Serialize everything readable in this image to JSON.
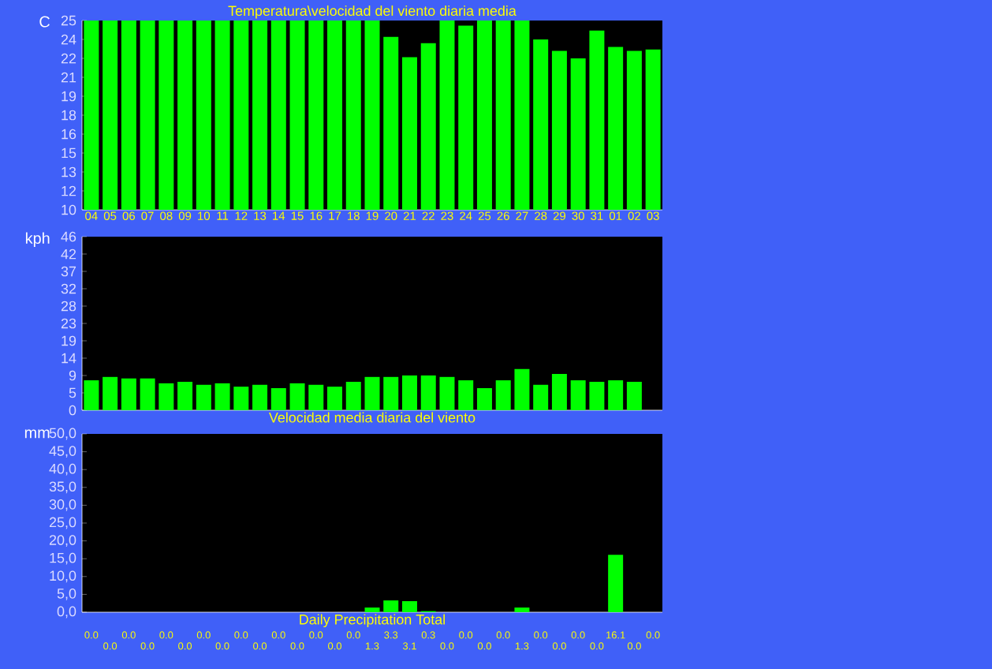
{
  "chart_data": [
    {
      "type": "bar",
      "title": "Temperatura\\velocidad del viento diaria media",
      "ylabel": "C",
      "categories": [
        "04",
        "05",
        "06",
        "07",
        "08",
        "09",
        "10",
        "11",
        "12",
        "13",
        "14",
        "15",
        "16",
        "17",
        "18",
        "19",
        "20",
        "21",
        "22",
        "23",
        "24",
        "25",
        "26",
        "27",
        "28",
        "29",
        "30",
        "31",
        "01",
        "02",
        "03"
      ],
      "values": [
        25,
        25,
        25,
        25,
        25,
        25,
        25,
        25,
        25,
        25,
        25,
        25,
        25,
        25,
        25,
        25,
        23.7,
        22.1,
        23.2,
        25,
        24.6,
        25,
        25,
        25,
        23.5,
        22.6,
        22.0,
        24.2,
        22.9,
        22.6,
        22.7
      ],
      "color": "#00ff00",
      "ylim": [
        10,
        25
      ],
      "yticks": [
        {
          "value": 10,
          "label": "10"
        },
        {
          "value": 11.5,
          "label": "12"
        },
        {
          "value": 13,
          "label": "13"
        },
        {
          "value": 14.5,
          "label": "15"
        },
        {
          "value": 16,
          "label": "16"
        },
        {
          "value": 17.5,
          "label": "18"
        },
        {
          "value": 19,
          "label": "19"
        },
        {
          "value": 20.5,
          "label": "21"
        },
        {
          "value": 22,
          "label": "22"
        },
        {
          "value": 23.5,
          "label": "24"
        },
        {
          "value": 25,
          "label": "25"
        }
      ]
    },
    {
      "type": "bar",
      "ylabel": "kph",
      "xlabel": "Velocidad media diaria del viento",
      "tick_labels": "y",
      "categories": [
        "04",
        "05",
        "06",
        "07",
        "08",
        "09",
        "10",
        "11",
        "12",
        "13",
        "14",
        "15",
        "16",
        "17",
        "18",
        "19",
        "20",
        "21",
        "22",
        "23",
        "24",
        "25",
        "26",
        "27",
        "28",
        "29",
        "30",
        "31",
        "01",
        "02",
        "03"
      ],
      "values": [
        8.0,
        8.9,
        8.5,
        8.5,
        7.2,
        7.6,
        6.8,
        7.2,
        6.3,
        6.8,
        5.9,
        7.2,
        6.8,
        6.3,
        7.6,
        8.9,
        8.9,
        9.3,
        9.3,
        8.9,
        8.0,
        5.9,
        8.0,
        11.0,
        6.8,
        9.7,
        8.0,
        7.6,
        8.0,
        7.6,
        null
      ],
      "color": "#00ff00",
      "ylim": [
        0,
        46.4
      ],
      "yticks": [
        {
          "value": 0,
          "label": "0"
        },
        {
          "value": 4.64,
          "label": "5"
        },
        {
          "value": 9.28,
          "label": "9"
        },
        {
          "value": 13.92,
          "label": "14"
        },
        {
          "value": 18.56,
          "label": "19"
        },
        {
          "value": 23.2,
          "label": "23"
        },
        {
          "value": 27.84,
          "label": "28"
        },
        {
          "value": 32.48,
          "label": "32"
        },
        {
          "value": 37.12,
          "label": "37"
        },
        {
          "value": 41.76,
          "label": "42"
        },
        {
          "value": 46.4,
          "label": "46"
        }
      ]
    },
    {
      "type": "bar",
      "ylabel": "mm",
      "xlabel": "Daily Precipitation Total",
      "tick_labels": "y",
      "categories": [
        "04",
        "05",
        "06",
        "07",
        "08",
        "09",
        "10",
        "11",
        "12",
        "13",
        "14",
        "15",
        "16",
        "17",
        "18",
        "19",
        "20",
        "21",
        "22",
        "23",
        "24",
        "25",
        "26",
        "27",
        "28",
        "29",
        "30",
        "31",
        "01",
        "02",
        "03"
      ],
      "values": [
        0.0,
        0.0,
        0.0,
        0.0,
        0.0,
        0.0,
        0.0,
        0.0,
        0.0,
        0.0,
        0.0,
        0.0,
        0.0,
        0.0,
        0.0,
        1.3,
        3.3,
        3.1,
        0.3,
        0.0,
        0.0,
        0.0,
        0.0,
        1.3,
        0.0,
        0.0,
        0.0,
        0.0,
        16.1,
        0.0,
        0.0
      ],
      "value_labels": [
        "0.0",
        "0.0",
        "0.0",
        "0.0",
        "0.0",
        "0.0",
        "0.0",
        "0.0",
        "0.0",
        "0.0",
        "0.0",
        "0.0",
        "0.0",
        "0.0",
        "0.0",
        "1.3",
        "3.3",
        "3.1",
        "0.3",
        "0.0",
        "0.0",
        "0.0",
        "0.0",
        "1.3",
        "0.0",
        "0.0",
        "0.0",
        "0.0",
        "16.1",
        "0.0",
        "0.0"
      ],
      "color": "#00ff00",
      "ylim": [
        0,
        50
      ],
      "yticks": [
        {
          "value": 0,
          "label": "0,0"
        },
        {
          "value": 5,
          "label": "5,0"
        },
        {
          "value": 10,
          "label": "10,0"
        },
        {
          "value": 15,
          "label": "15,0"
        },
        {
          "value": 20,
          "label": "20,0"
        },
        {
          "value": 25,
          "label": "25,0"
        },
        {
          "value": 30,
          "label": "30,0"
        },
        {
          "value": 35,
          "label": "35,0"
        },
        {
          "value": 40,
          "label": "40,0"
        },
        {
          "value": 45,
          "label": "45,0"
        },
        {
          "value": 50,
          "label": "50,0"
        }
      ]
    }
  ]
}
